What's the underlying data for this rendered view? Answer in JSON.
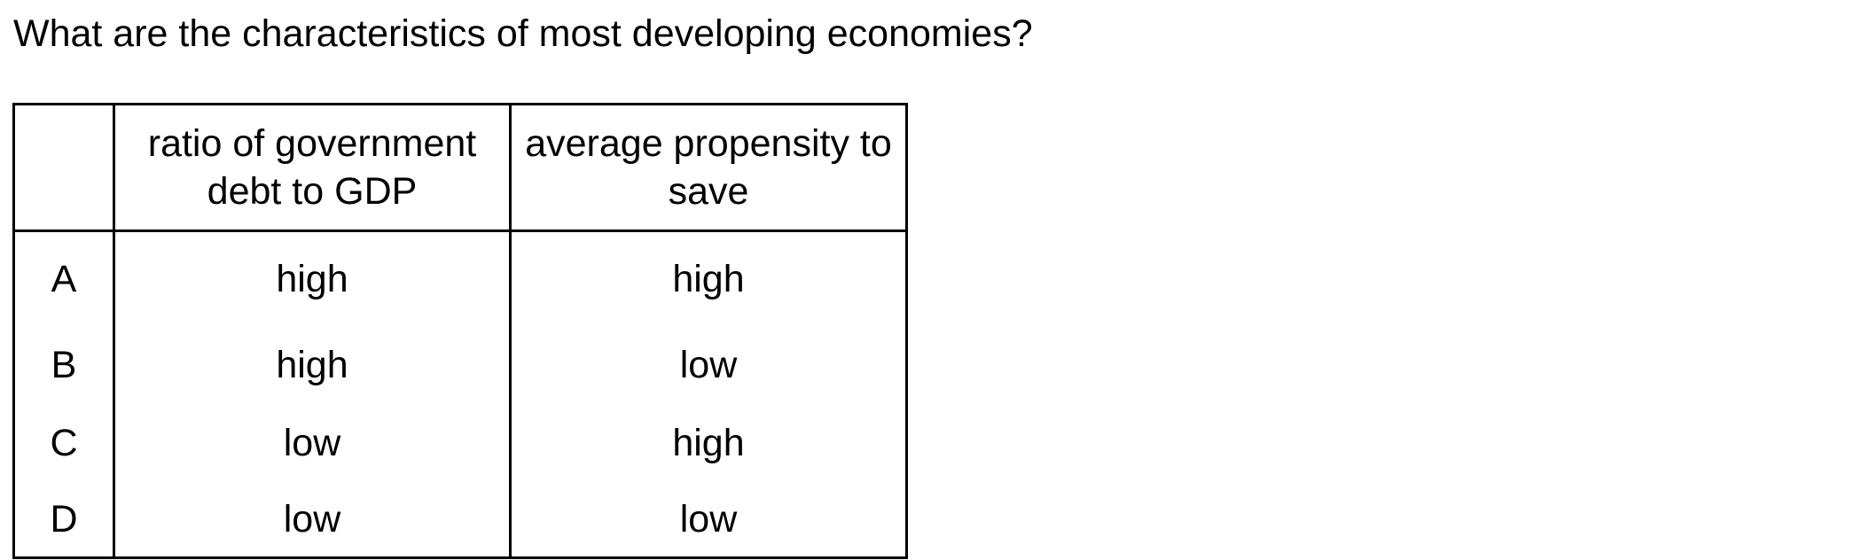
{
  "question": "What are the characteristics of most developing economies?",
  "table": {
    "headers": [
      "",
      "ratio of government debt to GDP",
      "average propensity to save"
    ],
    "rows": [
      {
        "option": "A",
        "debt": "high",
        "save": "high"
      },
      {
        "option": "B",
        "debt": "high",
        "save": "low"
      },
      {
        "option": "C",
        "debt": "low",
        "save": "high"
      },
      {
        "option": "D",
        "debt": "low",
        "save": "low"
      }
    ]
  }
}
